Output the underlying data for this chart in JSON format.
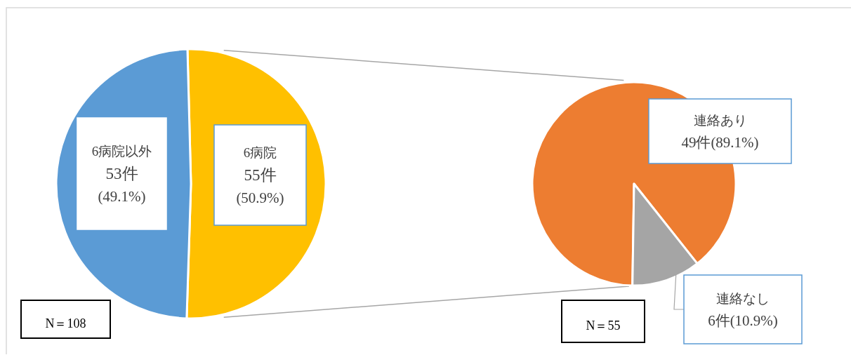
{
  "chart_data": [
    {
      "type": "pie",
      "categories": [
        "6病院",
        "6病院以外"
      ],
      "values": [
        55,
        53
      ],
      "colors": [
        "#ffc000",
        "#5b9bd5"
      ],
      "value_labels": [
        "55件\n(50.9%)",
        "53件\n(49.1%)"
      ],
      "annotations": [
        "N＝108"
      ]
    },
    {
      "type": "pie",
      "categories": [
        "連絡あり",
        "連絡なし"
      ],
      "values": [
        49,
        6
      ],
      "colors": [
        "#ed7d31",
        "#a5a5a5"
      ],
      "value_labels": [
        "49件(89.1%)",
        "6件(10.9%)"
      ],
      "annotations": [
        "N＝55"
      ]
    }
  ]
}
